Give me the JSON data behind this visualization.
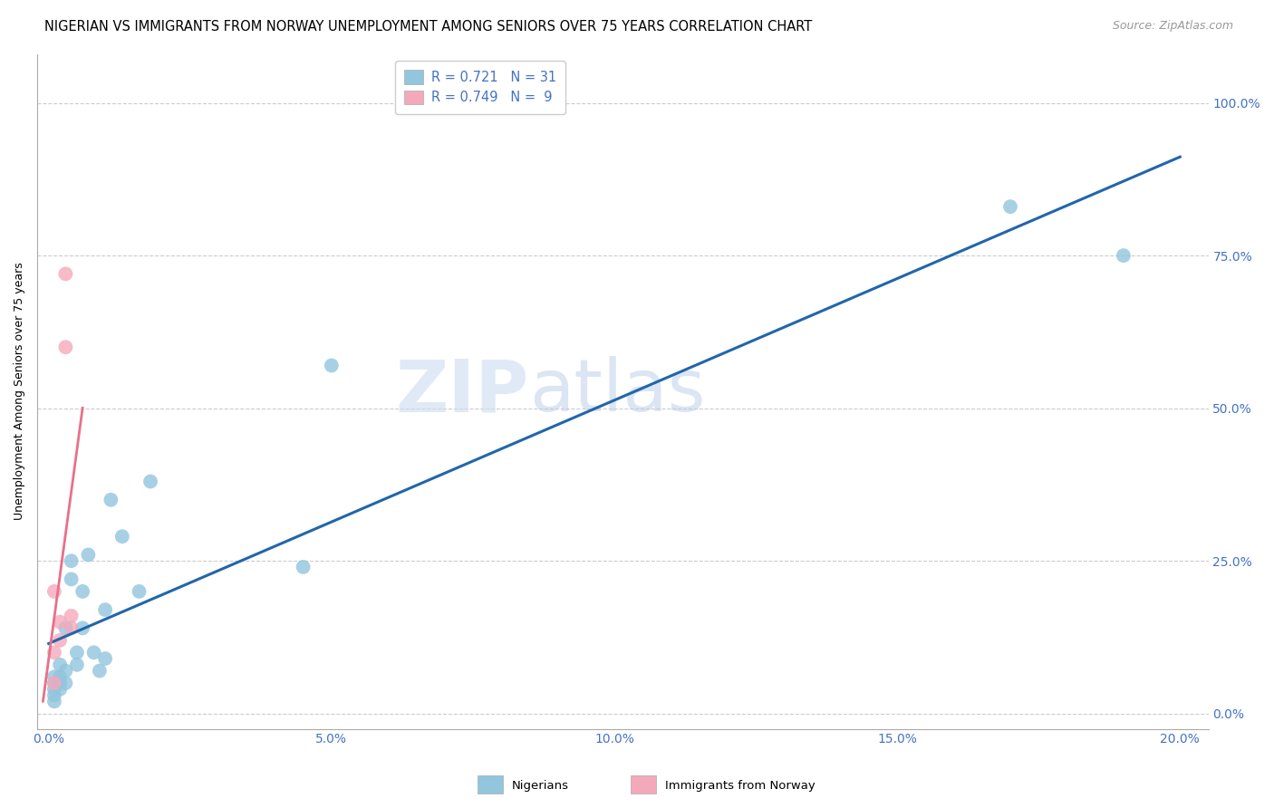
{
  "title": "NIGERIAN VS IMMIGRANTS FROM NORWAY UNEMPLOYMENT AMONG SENIORS OVER 75 YEARS CORRELATION CHART",
  "source": "Source: ZipAtlas.com",
  "ylabel": "Unemployment Among Seniors over 75 years",
  "blue_R": 0.721,
  "blue_N": 31,
  "pink_R": 0.749,
  "pink_N": 9,
  "blue_label": "Nigerians",
  "pink_label": "Immigrants from Norway",
  "blue_color": "#92C5DE",
  "pink_color": "#F4A9BB",
  "blue_line_color": "#2166AC",
  "pink_line_color": "#E8718A",
  "dashed_line_color": "#bbbbbb",
  "watermark_zip": "ZIP",
  "watermark_atlas": "atlas",
  "blue_x": [
    0.001,
    0.001,
    0.001,
    0.001,
    0.001,
    0.002,
    0.002,
    0.002,
    0.002,
    0.003,
    0.003,
    0.003,
    0.004,
    0.004,
    0.005,
    0.005,
    0.006,
    0.006,
    0.007,
    0.008,
    0.009,
    0.01,
    0.01,
    0.011,
    0.013,
    0.016,
    0.018,
    0.045,
    0.05,
    0.17,
    0.19
  ],
  "blue_y": [
    0.02,
    0.03,
    0.04,
    0.05,
    0.06,
    0.04,
    0.05,
    0.06,
    0.08,
    0.05,
    0.07,
    0.14,
    0.22,
    0.25,
    0.08,
    0.1,
    0.14,
    0.2,
    0.26,
    0.1,
    0.07,
    0.09,
    0.17,
    0.35,
    0.29,
    0.2,
    0.38,
    0.24,
    0.57,
    0.83,
    0.75
  ],
  "pink_x": [
    0.001,
    0.001,
    0.001,
    0.002,
    0.002,
    0.003,
    0.003,
    0.004,
    0.004
  ],
  "pink_y": [
    0.05,
    0.1,
    0.2,
    0.12,
    0.15,
    0.6,
    0.72,
    0.14,
    0.16
  ],
  "xlim": [
    -0.002,
    0.205
  ],
  "ylim": [
    -0.025,
    1.08
  ],
  "xlabel_vals": [
    0.0,
    0.05,
    0.1,
    0.15,
    0.2
  ],
  "xlabel_ticks": [
    "0.0%",
    "5.0%",
    "10.0%",
    "15.0%",
    "20.0%"
  ],
  "ylabel_vals": [
    0.0,
    0.25,
    0.5,
    0.75,
    1.0
  ],
  "ylabel_ticks": [
    "0.0%",
    "25.0%",
    "50.0%",
    "75.0%",
    "100.0%"
  ],
  "tick_color": "#4472C4",
  "tick_fontsize": 10,
  "title_fontsize": 10.5,
  "source_fontsize": 9,
  "label_fontsize": 9,
  "marker_size": 130
}
